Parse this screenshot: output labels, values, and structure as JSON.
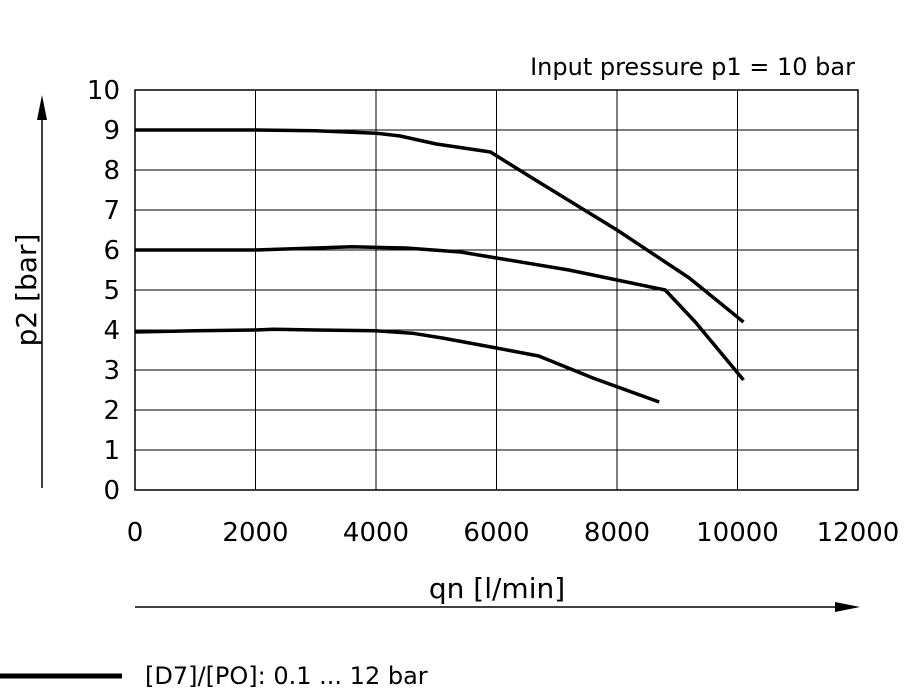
{
  "chart_data": {
    "type": "line",
    "annotation": "Input pressure p1 = 10 bar",
    "xlabel": "qn [l/min]",
    "ylabel": "p2 [bar]",
    "xlim": [
      0,
      12000
    ],
    "ylim": [
      0,
      10
    ],
    "xticks": [
      0,
      2000,
      4000,
      6000,
      8000,
      10000,
      12000
    ],
    "yticks": [
      0,
      1,
      2,
      3,
      4,
      5,
      6,
      7,
      8,
      9,
      10
    ],
    "xtick_labels": [
      "0",
      "2000",
      "4000",
      "6000",
      "8000",
      "10000",
      "12000"
    ],
    "ytick_labels": [
      "0",
      "1",
      "2",
      "3",
      "4",
      "5",
      "6",
      "7",
      "8",
      "9",
      "10"
    ],
    "grid": true,
    "legend": {
      "placement": "bottom-left",
      "label": "[D7]/[PO]: 0.1 ... 12 bar"
    },
    "series": [
      {
        "x": [
          0,
          1000,
          2000,
          3000,
          4000,
          4400,
          5000,
          5900,
          6700,
          8000,
          9200,
          10100
        ],
        "y": [
          9.0,
          9.0,
          9.0,
          8.98,
          8.92,
          8.85,
          8.65,
          8.45,
          7.7,
          6.5,
          5.3,
          4.2
        ]
      },
      {
        "x": [
          0,
          1000,
          2000,
          3000,
          3600,
          4500,
          5400,
          6000,
          7200,
          8000,
          8800,
          9300,
          10100
        ],
        "y": [
          6.0,
          6.0,
          6.0,
          6.05,
          6.08,
          6.05,
          5.95,
          5.8,
          5.5,
          5.25,
          5.0,
          4.2,
          2.75
        ]
      },
      {
        "x": [
          0,
          1000,
          2000,
          2300,
          3000,
          4000,
          4600,
          5100,
          6000,
          6700,
          7600,
          8700
        ],
        "y": [
          3.95,
          3.98,
          4.0,
          4.02,
          4.0,
          3.98,
          3.92,
          3.8,
          3.55,
          3.35,
          2.8,
          2.2
        ]
      }
    ]
  }
}
